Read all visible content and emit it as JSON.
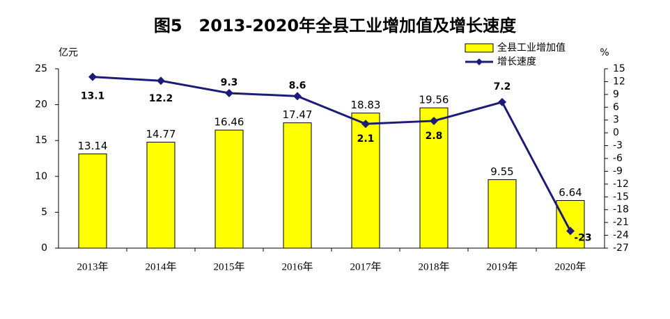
{
  "chart_data": {
    "type": "bar",
    "title": "图5　2013-2020年全县工业增加值及增长速度",
    "y_label": "亿元",
    "y2_label": "%",
    "categories": [
      "2013年",
      "2014年",
      "2015年",
      "2016年",
      "2017年",
      "2018年",
      "2019年",
      "2020年"
    ],
    "series": [
      {
        "name": "全县工业增加值",
        "type": "bar",
        "color": "#ffff00",
        "values": [
          13.14,
          14.77,
          16.46,
          17.47,
          18.83,
          19.56,
          9.55,
          6.64
        ]
      },
      {
        "name": "增长速度",
        "type": "line",
        "axis": "y2",
        "color": "#1c1c78",
        "values": [
          13.1,
          12.2,
          9.3,
          8.6,
          2.1,
          2.8,
          7.2,
          -23
        ]
      }
    ],
    "ylim": [
      0,
      25
    ],
    "yticks": [
      0,
      5,
      10,
      15,
      20,
      25
    ],
    "y2lim": [
      -27,
      15
    ],
    "y2ticks": [
      15,
      12,
      9,
      6,
      3,
      0,
      -3,
      -6,
      -9,
      -12,
      -15,
      -18,
      -21,
      -24,
      -27
    ],
    "grid": false,
    "legend": "top-right"
  }
}
